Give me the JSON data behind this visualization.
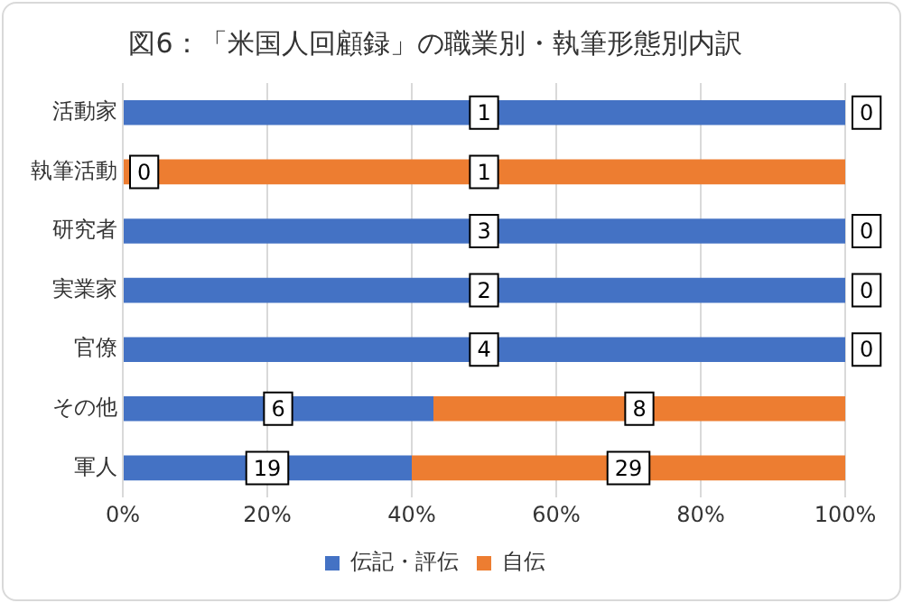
{
  "chart_data": {
    "type": "bar",
    "orientation": "horizontal",
    "stacked": true,
    "title": "図6：「米国人回顧録」の職業別・執筆形態別内訳",
    "categories": [
      "活動家",
      "執筆活動",
      "研究者",
      "実業家",
      "官僚",
      "その他",
      "軍人"
    ],
    "series": [
      {
        "name": "伝記・評伝",
        "color": "#4472c4",
        "values": [
          100,
          0,
          100,
          100,
          100,
          43,
          40
        ]
      },
      {
        "name": "自伝",
        "color": "#ed7d31",
        "values": [
          0,
          100,
          0,
          0,
          0,
          57,
          60
        ]
      }
    ],
    "annotations": [
      {
        "text": "1",
        "x": 50,
        "y": "活動家"
      },
      {
        "text": "0",
        "x": 100,
        "y": "活動家"
      },
      {
        "text": "0",
        "x": 0,
        "y": "執筆活動"
      },
      {
        "text": "1",
        "x": 50,
        "y": "執筆活動"
      },
      {
        "text": "3",
        "x": 50,
        "y": "研究者"
      },
      {
        "text": "0",
        "x": 100,
        "y": "研究者"
      },
      {
        "text": "2",
        "x": 50,
        "y": "実業家"
      },
      {
        "text": "0",
        "x": 100,
        "y": "実業家"
      },
      {
        "text": "4",
        "x": 50,
        "y": "官僚"
      },
      {
        "text": "0",
        "x": 100,
        "y": "官僚"
      },
      {
        "text": "6",
        "x": 21.5,
        "y": "その他"
      },
      {
        "text": "8",
        "x": 71.5,
        "y": "その他"
      },
      {
        "text": "19",
        "x": 20,
        "y": "軍人"
      },
      {
        "text": "29",
        "x": 70,
        "y": "軍人"
      }
    ],
    "xlim": [
      0,
      100
    ],
    "xticks": [
      {
        "value": 0,
        "label": "0%"
      },
      {
        "value": 20,
        "label": "20%"
      },
      {
        "value": 40,
        "label": "40%"
      },
      {
        "value": 60,
        "label": "60%"
      },
      {
        "value": 80,
        "label": "80%"
      },
      {
        "value": 100,
        "label": "100%"
      }
    ],
    "grid": "x",
    "legend": "bottom"
  }
}
